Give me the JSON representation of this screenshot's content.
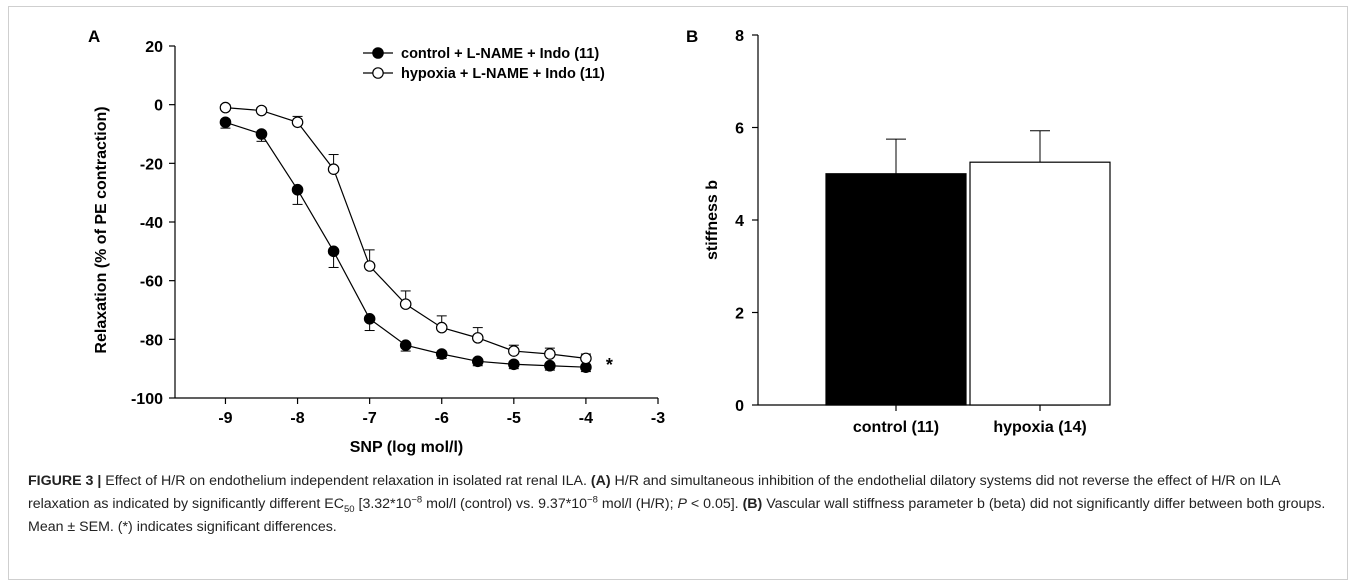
{
  "chart_data": [
    {
      "type": "line",
      "panel_label": "A",
      "xlabel": "SNP (log mol/l)",
      "ylabel": "Relaxation (% of PE contraction)",
      "xlim": [
        -9.7,
        -3
      ],
      "ylim": [
        -100,
        20
      ],
      "xticks": [
        -9,
        -8,
        -7,
        -6,
        -5,
        -4,
        -3
      ],
      "yticks": [
        20,
        0,
        -20,
        -40,
        -60,
        -80,
        -100
      ],
      "grid": false,
      "legend_position": "top-right",
      "annotation": "*",
      "x": [
        -9,
        -8.5,
        -8,
        -7.5,
        -7,
        -6.5,
        -6,
        -5.5,
        -5,
        -4.5,
        -4
      ],
      "series": [
        {
          "name": "control + L-NAME + Indo (11)",
          "marker": "filled-circle",
          "values": [
            -6,
            -10,
            -29,
            -50,
            -73,
            -82,
            -85,
            -87.5,
            -88.5,
            -89,
            -89.5
          ],
          "errors": [
            2,
            2.5,
            5,
            5.5,
            4,
            2,
            1.5,
            1.5,
            1.5,
            1.5,
            1.5
          ]
        },
        {
          "name": "hypoxia + L-NAME + Indo (11)",
          "marker": "open-circle",
          "values": [
            -1,
            -2,
            -6,
            -22,
            -55,
            -68,
            -76,
            -79.5,
            -84,
            -85,
            -86.5
          ],
          "errors": [
            1,
            1,
            2,
            5,
            5.5,
            4.5,
            4,
            3.5,
            2,
            2,
            1.5
          ]
        }
      ]
    },
    {
      "type": "bar",
      "panel_label": "B",
      "ylabel": "stiffness b",
      "ylim": [
        0,
        8
      ],
      "yticks": [
        0,
        2,
        4,
        6,
        8
      ],
      "grid": false,
      "categories": [
        "control (11)",
        "hypoxia (14)"
      ],
      "values": [
        5.0,
        5.25
      ],
      "errors": [
        0.75,
        0.68
      ],
      "colors": [
        "#000000",
        "#ffffff"
      ]
    }
  ],
  "caption": {
    "figure_label": "FIGURE 3 |",
    "intro": " Effect of H/R on endothelium independent relaxation in isolated rat renal ILA. ",
    "a_label": "(A)",
    "a_text_1": " H/R and simultaneous inhibition of the endothelial dilatory systems did not reverse the effect of H/R on ILA relaxation as indicated by significantly different EC",
    "a_sub": "50",
    "a_text_2": " [3.32*10",
    "a_sup_1": "−8",
    "a_text_3": " mol/l (control) vs. 9.37*10",
    "a_sup_2": "−8",
    "a_text_4": " mol/l (H/R); ",
    "a_p": "P",
    "a_text_5": " < 0.05]. ",
    "b_label": "(B)",
    "b_text": " Vascular wall stiffness parameter b (beta) did not significantly differ between both groups. Mean ± SEM. (*) indicates significant differences."
  }
}
